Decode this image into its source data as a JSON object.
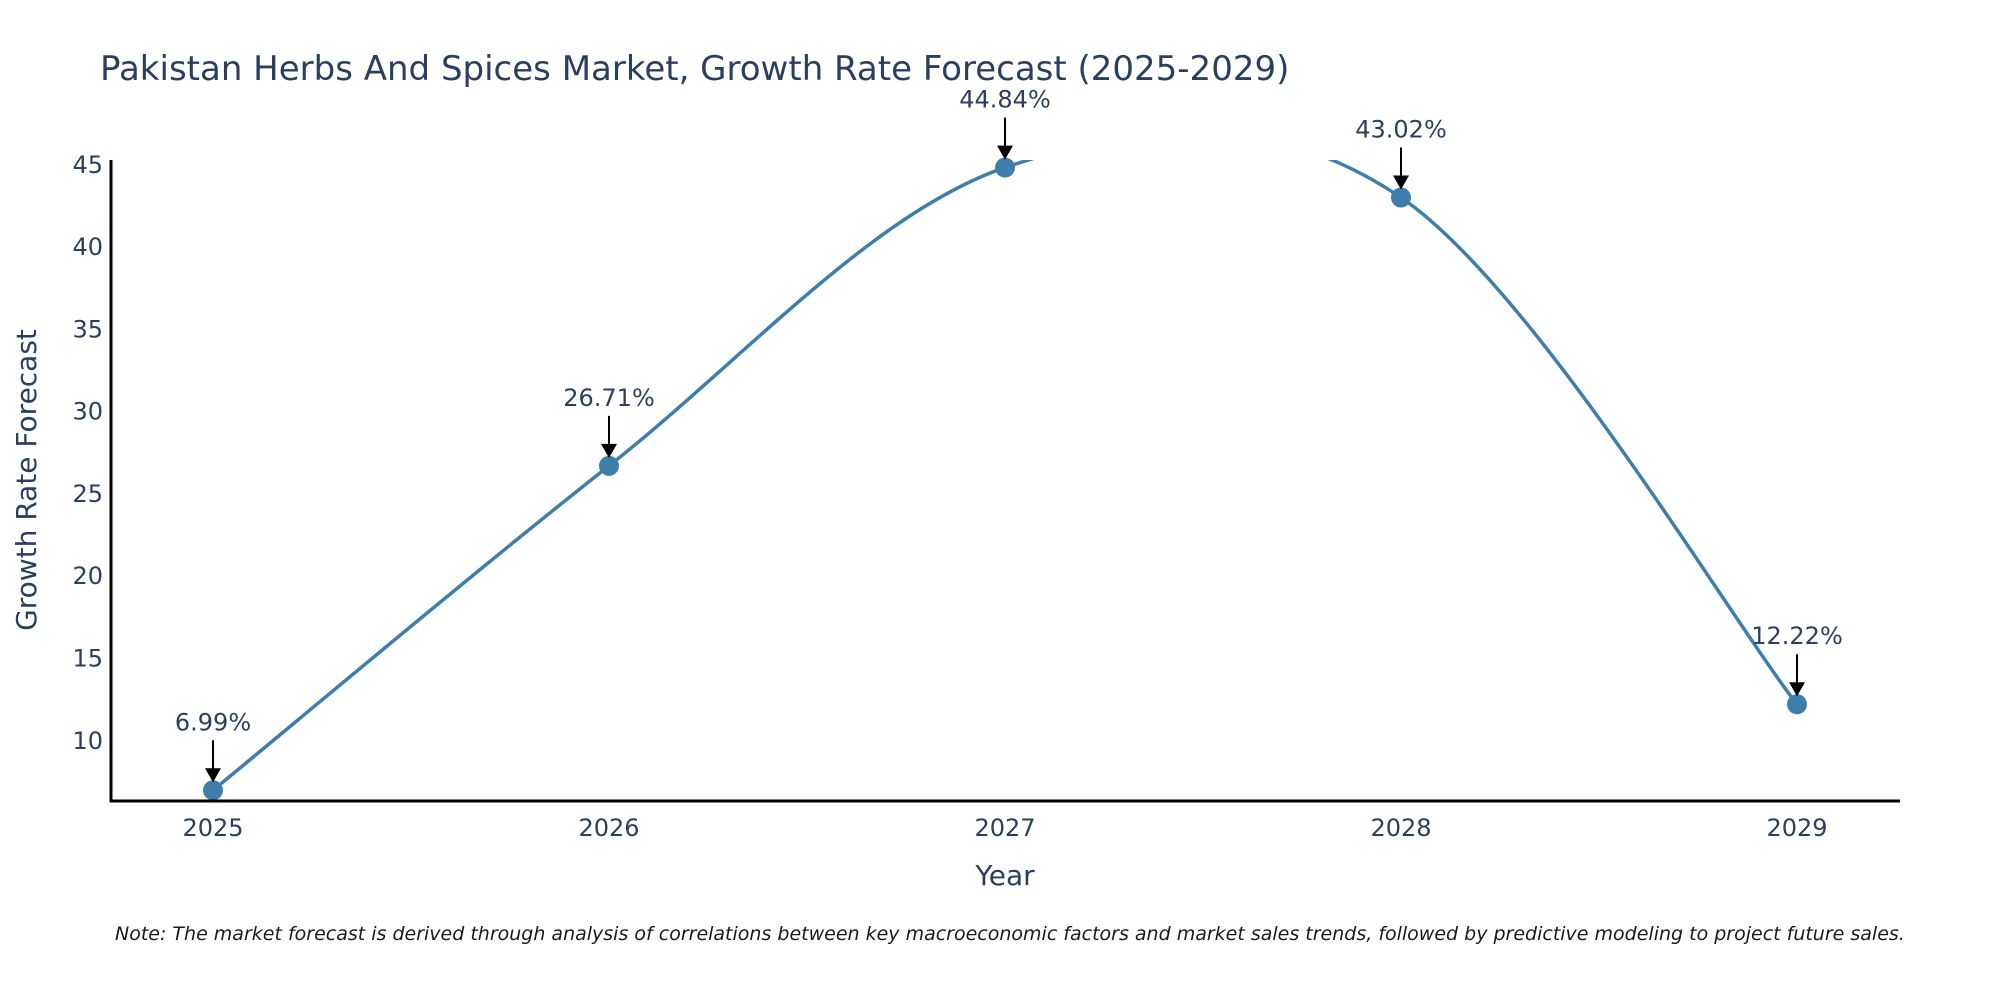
{
  "chart_data": {
    "type": "line",
    "title": "Pakistan Herbs And Spices Market, Growth Rate Forecast (2025-2029)",
    "xlabel": "Year",
    "ylabel": "Growth Rate Forecast",
    "categories": [
      "2025",
      "2026",
      "2027",
      "2028",
      "2029"
    ],
    "values": [
      6.99,
      26.71,
      44.84,
      43.02,
      12.22
    ],
    "data_labels": [
      "6.99%",
      "26.71%",
      "44.84%",
      "43.02%",
      "12.22%"
    ],
    "yticks": [
      10,
      15,
      20,
      25,
      30,
      35,
      40,
      45
    ],
    "ylim": [
      6.4,
      45.3
    ],
    "grid": false,
    "line_color": "#3d7eab",
    "marker_color": "#3d7eab",
    "note": "Note: The market forecast is derived through analysis of correlations between key macroeconomic factors and market sales trends, followed by predictive modeling to project future sales."
  }
}
